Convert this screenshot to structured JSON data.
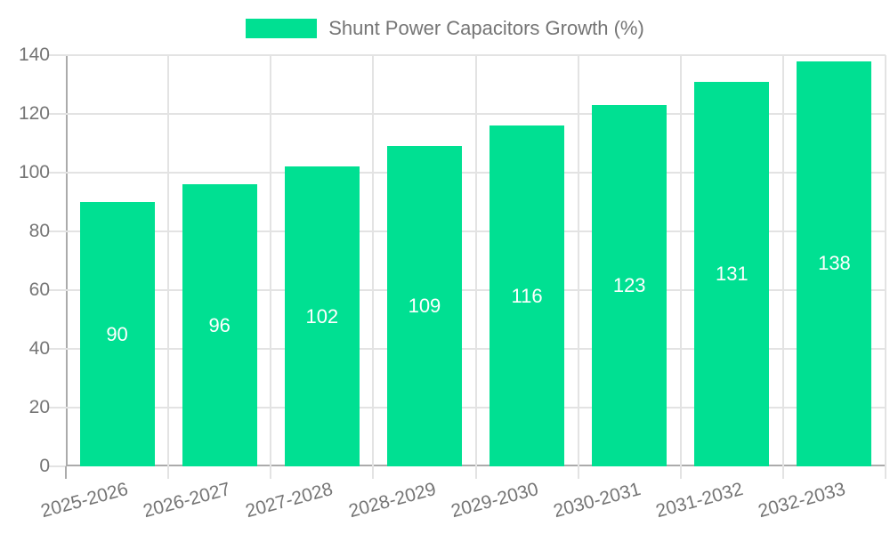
{
  "chart_data": {
    "type": "bar",
    "title": "Shunt Power Capacitors Growth (%)",
    "categories": [
      "2025-2026",
      "2026-2027",
      "2027-2028",
      "2028-2029",
      "2029-2030",
      "2030-2031",
      "2031-2032",
      "2032-2033"
    ],
    "values": [
      90,
      96,
      102,
      109,
      116,
      123,
      131,
      138
    ],
    "xlabel": "",
    "ylabel": "",
    "ylim": [
      0,
      140
    ],
    "yticks": [
      0,
      20,
      40,
      60,
      80,
      100,
      120,
      140
    ],
    "grid": true,
    "legend_position": "top",
    "value_labels": "centered-inside-bars",
    "colors": {
      "bar": "#00E092",
      "bar_value_label": "#FFFFFF",
      "axis_line": "#ABABAB",
      "gridline": "#E3E3E3",
      "tick_text": "#757575",
      "legend_text": "#757575",
      "background": "#FFFFFF"
    }
  }
}
